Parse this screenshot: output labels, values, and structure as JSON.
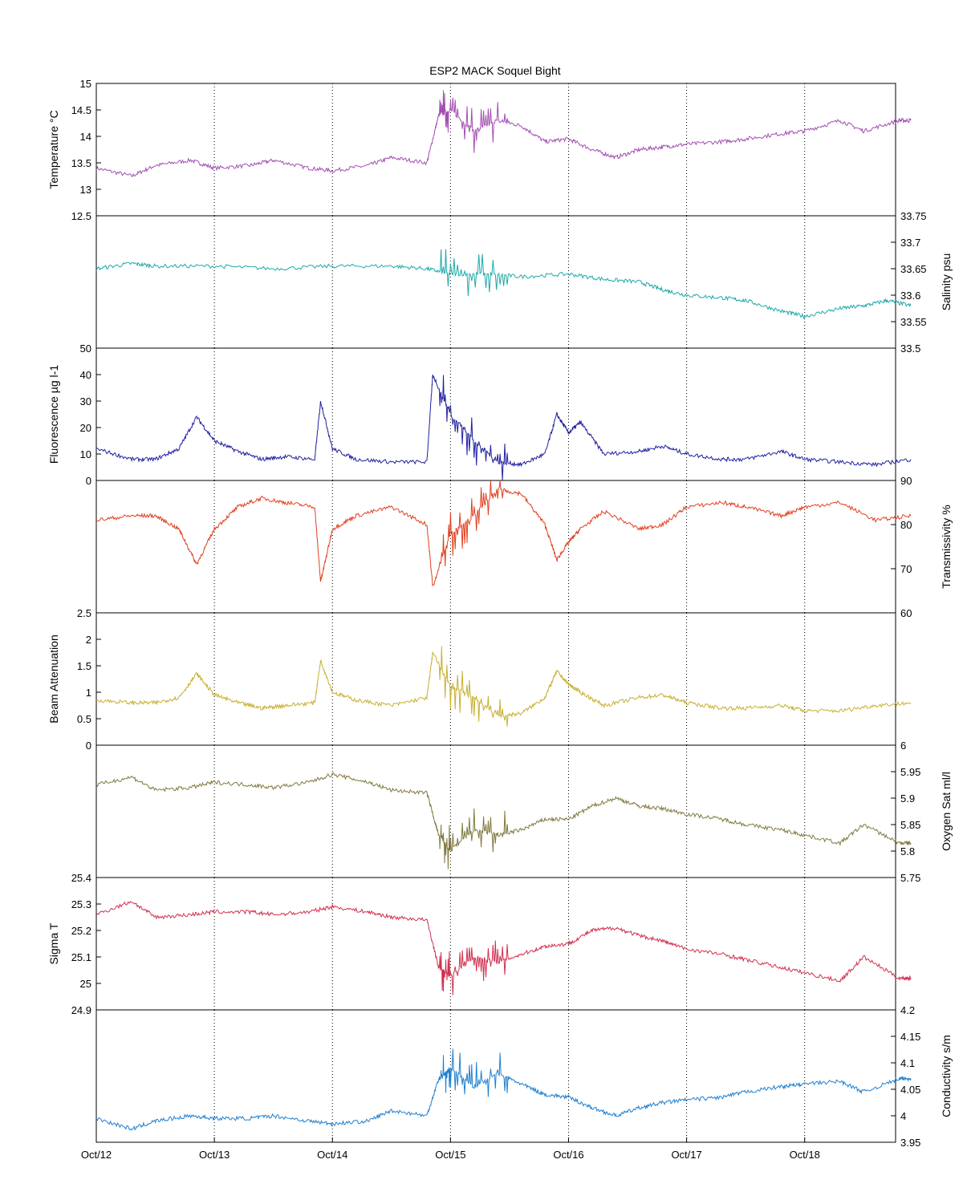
{
  "figure": {
    "title": "ESP2 MACK  Soquel Bight",
    "x_ticks": [
      "Oct/12",
      "Oct/13",
      "Oct/14",
      "Oct/15",
      "Oct/16",
      "Oct/17",
      "Oct/18"
    ]
  },
  "chart_data": [
    {
      "type": "line",
      "ylabel": "Temperature °C",
      "axis_side": "left",
      "ylim": [
        12.5,
        15
      ],
      "yticks": [
        "15",
        "14.5",
        "14",
        "13.5",
        "13",
        "12.5"
      ],
      "color": "#a34fb3",
      "series": [
        {
          "x": [
            12,
            12.3,
            12.5,
            12.8,
            13,
            13.3,
            13.5,
            13.8,
            14,
            14.3,
            14.5,
            14.8,
            14.9,
            15,
            15.2,
            15.4,
            15.6,
            15.8,
            16,
            16.2,
            16.4,
            16.6,
            16.8,
            17,
            17.3,
            17.5,
            17.8,
            18,
            18.3,
            18.5,
            18.8,
            18.9
          ],
          "y": [
            13.4,
            13.25,
            13.45,
            13.55,
            13.4,
            13.45,
            13.55,
            13.4,
            13.35,
            13.45,
            13.6,
            13.5,
            14.4,
            14.5,
            14.1,
            14.3,
            14.2,
            13.9,
            13.95,
            13.75,
            13.6,
            13.75,
            13.8,
            13.85,
            13.9,
            13.95,
            14.05,
            14.1,
            14.3,
            14.1,
            14.3,
            14.3
          ]
        }
      ]
    },
    {
      "type": "line",
      "ylabel": "Salinity psu",
      "axis_side": "right",
      "ylim": [
        33.5,
        33.75
      ],
      "yticks": [
        "33.75",
        "33.7",
        "33.65",
        "33.6",
        "33.55",
        "33.5"
      ],
      "color": "#20a8a8",
      "series": [
        {
          "x": [
            12,
            12.3,
            12.5,
            13,
            13.5,
            14,
            14.5,
            14.8,
            15,
            15.3,
            15.6,
            16,
            16.3,
            16.6,
            16.8,
            17,
            17.3,
            17.5,
            17.8,
            18,
            18.3,
            18.5,
            18.7,
            18.9
          ],
          "y": [
            33.65,
            33.66,
            33.655,
            33.655,
            33.65,
            33.655,
            33.655,
            33.65,
            33.64,
            33.64,
            33.635,
            33.64,
            33.63,
            33.625,
            33.61,
            33.6,
            33.595,
            33.59,
            33.57,
            33.56,
            33.575,
            33.58,
            33.59,
            33.58
          ]
        }
      ]
    },
    {
      "type": "line",
      "ylabel": "Fluorescence µg l-1",
      "axis_side": "left",
      "ylim": [
        0,
        50
      ],
      "yticks": [
        "50",
        "40",
        "30",
        "20",
        "10",
        "0"
      ],
      "color": "#2020a0",
      "series": [
        {
          "x": [
            12,
            12.3,
            12.5,
            12.7,
            12.85,
            13,
            13.2,
            13.4,
            13.6,
            13.85,
            13.9,
            14,
            14.2,
            14.5,
            14.8,
            14.85,
            15,
            15.2,
            15.4,
            15.6,
            15.8,
            15.9,
            16,
            16.1,
            16.3,
            16.6,
            16.8,
            17,
            17.3,
            17.5,
            17.8,
            18,
            18.3,
            18.6,
            18.9
          ],
          "y": [
            12,
            8,
            8,
            12,
            24,
            15,
            11,
            8,
            9,
            8,
            30,
            12,
            8,
            7,
            7,
            40,
            25,
            15,
            7,
            6,
            10,
            25,
            18,
            22,
            10,
            11,
            13,
            10,
            8,
            8,
            11,
            8,
            7,
            6,
            8
          ]
        }
      ]
    },
    {
      "type": "line",
      "ylabel": "Transmissivity %",
      "axis_side": "right",
      "ylim": [
        60,
        90
      ],
      "yticks": [
        "90",
        "80",
        "70",
        "60"
      ],
      "color": "#e04020",
      "series": [
        {
          "x": [
            12,
            12.3,
            12.5,
            12.7,
            12.85,
            13,
            13.2,
            13.4,
            13.6,
            13.85,
            13.9,
            14,
            14.2,
            14.5,
            14.8,
            14.85,
            15,
            15.2,
            15.4,
            15.6,
            15.8,
            15.9,
            16,
            16.1,
            16.3,
            16.6,
            16.8,
            17,
            17.3,
            17.5,
            17.8,
            18,
            18.3,
            18.6,
            18.9
          ],
          "y": [
            81,
            82,
            82,
            79,
            71,
            79,
            84,
            86,
            85,
            84,
            67,
            79,
            82,
            84,
            80,
            66,
            78,
            82,
            88,
            87,
            80,
            72,
            76,
            79,
            83,
            79,
            80,
            84,
            85,
            84,
            82,
            84,
            85,
            81,
            82
          ]
        }
      ]
    },
    {
      "type": "line",
      "ylabel": "Beam Attenuation",
      "axis_side": "left",
      "ylim": [
        0,
        2.5
      ],
      "yticks": [
        "2.5",
        "2",
        "1.5",
        "1",
        "0.5",
        "0"
      ],
      "color": "#c8b030",
      "series": [
        {
          "x": [
            12,
            12.3,
            12.5,
            12.7,
            12.85,
            13,
            13.2,
            13.4,
            13.6,
            13.85,
            13.9,
            14,
            14.2,
            14.5,
            14.8,
            14.85,
            15,
            15.2,
            15.4,
            15.6,
            15.8,
            15.9,
            16,
            16.1,
            16.3,
            16.6,
            16.8,
            17,
            17.3,
            17.5,
            17.8,
            18,
            18.3,
            18.6,
            18.9
          ],
          "y": [
            0.85,
            0.8,
            0.8,
            0.9,
            1.35,
            0.95,
            0.8,
            0.7,
            0.75,
            0.8,
            1.6,
            1.0,
            0.85,
            0.75,
            0.9,
            1.75,
            1.1,
            0.9,
            0.55,
            0.6,
            0.9,
            1.4,
            1.15,
            1.0,
            0.75,
            0.9,
            0.95,
            0.8,
            0.7,
            0.7,
            0.75,
            0.65,
            0.65,
            0.75,
            0.8
          ]
        }
      ]
    },
    {
      "type": "line",
      "ylabel": "Oxygen Sat ml/l",
      "axis_side": "right",
      "ylim": [
        5.75,
        6
      ],
      "yticks": [
        "6",
        "5.95",
        "5.9",
        "5.85",
        "5.8",
        "5.75"
      ],
      "color": "#807a40",
      "series": [
        {
          "x": [
            12,
            12.3,
            12.5,
            12.8,
            13,
            13.3,
            13.5,
            13.8,
            14,
            14.3,
            14.5,
            14.8,
            14.9,
            15,
            15.2,
            15.4,
            15.6,
            15.8,
            16,
            16.2,
            16.4,
            16.6,
            16.8,
            17,
            17.3,
            17.5,
            17.8,
            18,
            18.3,
            18.5,
            18.8,
            18.9
          ],
          "y": [
            5.925,
            5.94,
            5.915,
            5.92,
            5.93,
            5.925,
            5.92,
            5.93,
            5.945,
            5.93,
            5.915,
            5.91,
            5.83,
            5.8,
            5.84,
            5.83,
            5.84,
            5.86,
            5.86,
            5.885,
            5.9,
            5.885,
            5.88,
            5.87,
            5.86,
            5.85,
            5.84,
            5.83,
            5.815,
            5.85,
            5.815,
            5.815
          ]
        }
      ]
    },
    {
      "type": "line",
      "ylabel": "Sigma T",
      "axis_side": "left",
      "ylim": [
        24.9,
        25.4
      ],
      "yticks": [
        "25.4",
        "25.3",
        "25.2",
        "25.1",
        "25",
        "24.9"
      ],
      "color": "#d03050",
      "series": [
        {
          "x": [
            12,
            12.3,
            12.5,
            12.8,
            13,
            13.3,
            13.5,
            13.8,
            14,
            14.3,
            14.5,
            14.8,
            14.9,
            15,
            15.2,
            15.4,
            15.6,
            15.8,
            16,
            16.2,
            16.4,
            16.6,
            16.8,
            17,
            17.3,
            17.5,
            17.8,
            18,
            18.3,
            18.5,
            18.8,
            18.9
          ],
          "y": [
            25.26,
            25.31,
            25.25,
            25.26,
            25.27,
            25.27,
            25.26,
            25.27,
            25.29,
            25.27,
            25.25,
            25.24,
            25.06,
            25.03,
            25.1,
            25.08,
            25.11,
            25.14,
            25.15,
            25.2,
            25.21,
            25.18,
            25.16,
            25.13,
            25.11,
            25.09,
            25.06,
            25.04,
            25.01,
            25.1,
            25.02,
            25.02
          ]
        }
      ]
    },
    {
      "type": "line",
      "ylabel": "Conductivity s/m",
      "axis_side": "right",
      "ylim": [
        3.95,
        4.2
      ],
      "yticks": [
        "4.2",
        "4.15",
        "4.1",
        "4.05",
        "4",
        "3.95"
      ],
      "color": "#2080d0",
      "series": [
        {
          "x": [
            12,
            12.3,
            12.5,
            12.8,
            13,
            13.3,
            13.5,
            13.8,
            14,
            14.3,
            14.5,
            14.8,
            14.9,
            15,
            15.2,
            15.4,
            15.6,
            15.8,
            16,
            16.2,
            16.4,
            16.6,
            16.8,
            17,
            17.3,
            17.5,
            17.8,
            18,
            18.3,
            18.5,
            18.8,
            18.9
          ],
          "y": [
            3.995,
            3.975,
            3.99,
            4.0,
            3.995,
            3.995,
            4.0,
            3.99,
            3.985,
            3.99,
            4.01,
            4.0,
            4.07,
            4.09,
            4.055,
            4.08,
            4.06,
            4.04,
            4.035,
            4.015,
            4.0,
            4.015,
            4.025,
            4.03,
            4.035,
            4.045,
            4.055,
            4.06,
            4.065,
            4.045,
            4.07,
            4.07
          ]
        }
      ]
    }
  ]
}
